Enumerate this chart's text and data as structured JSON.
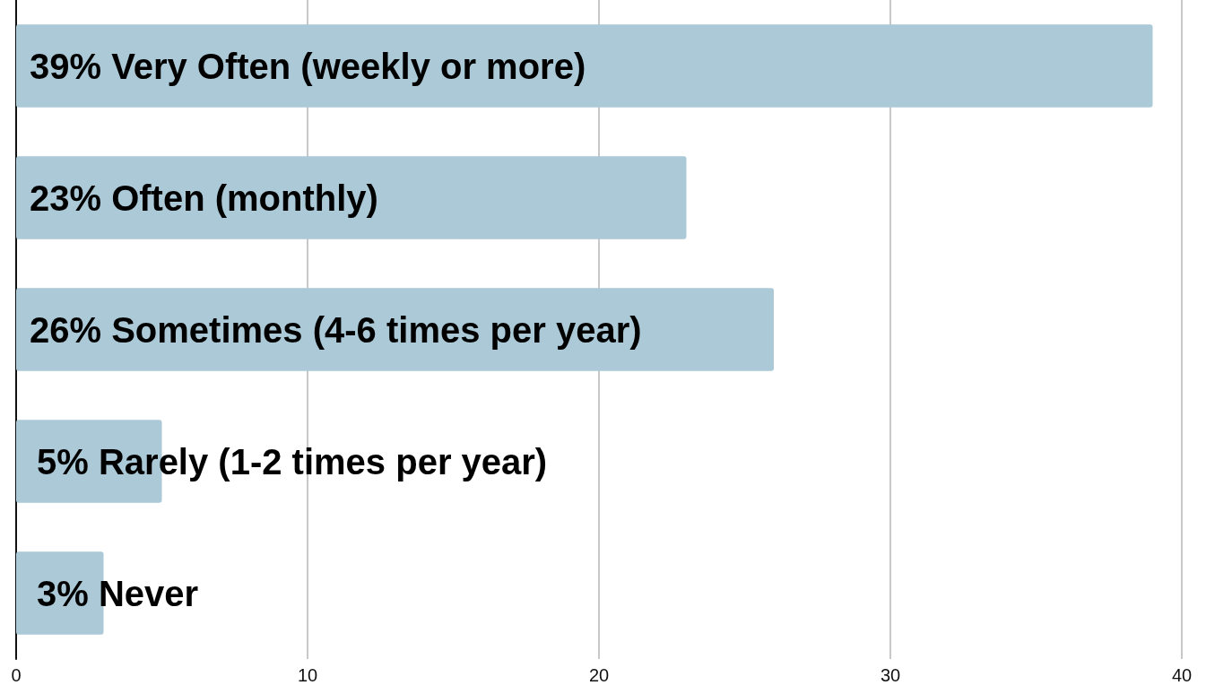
{
  "chart_data": {
    "type": "bar",
    "orientation": "horizontal",
    "categories": [
      null,
      null,
      null,
      null,
      null
    ],
    "values": [
      39,
      23,
      26,
      5,
      3
    ],
    "color": "#abc9d7",
    "value_labels": [
      "39% Very Often (weekly or more)",
      "23% Often (monthly)",
      "26% Sometimes (4-6 times per year)",
      "5% Rarely (1-2 times per year)",
      "3% Never"
    ],
    "xlim": [
      0,
      40
    ],
    "xticks": [
      0,
      10,
      20,
      30,
      40
    ],
    "grid": "x"
  }
}
